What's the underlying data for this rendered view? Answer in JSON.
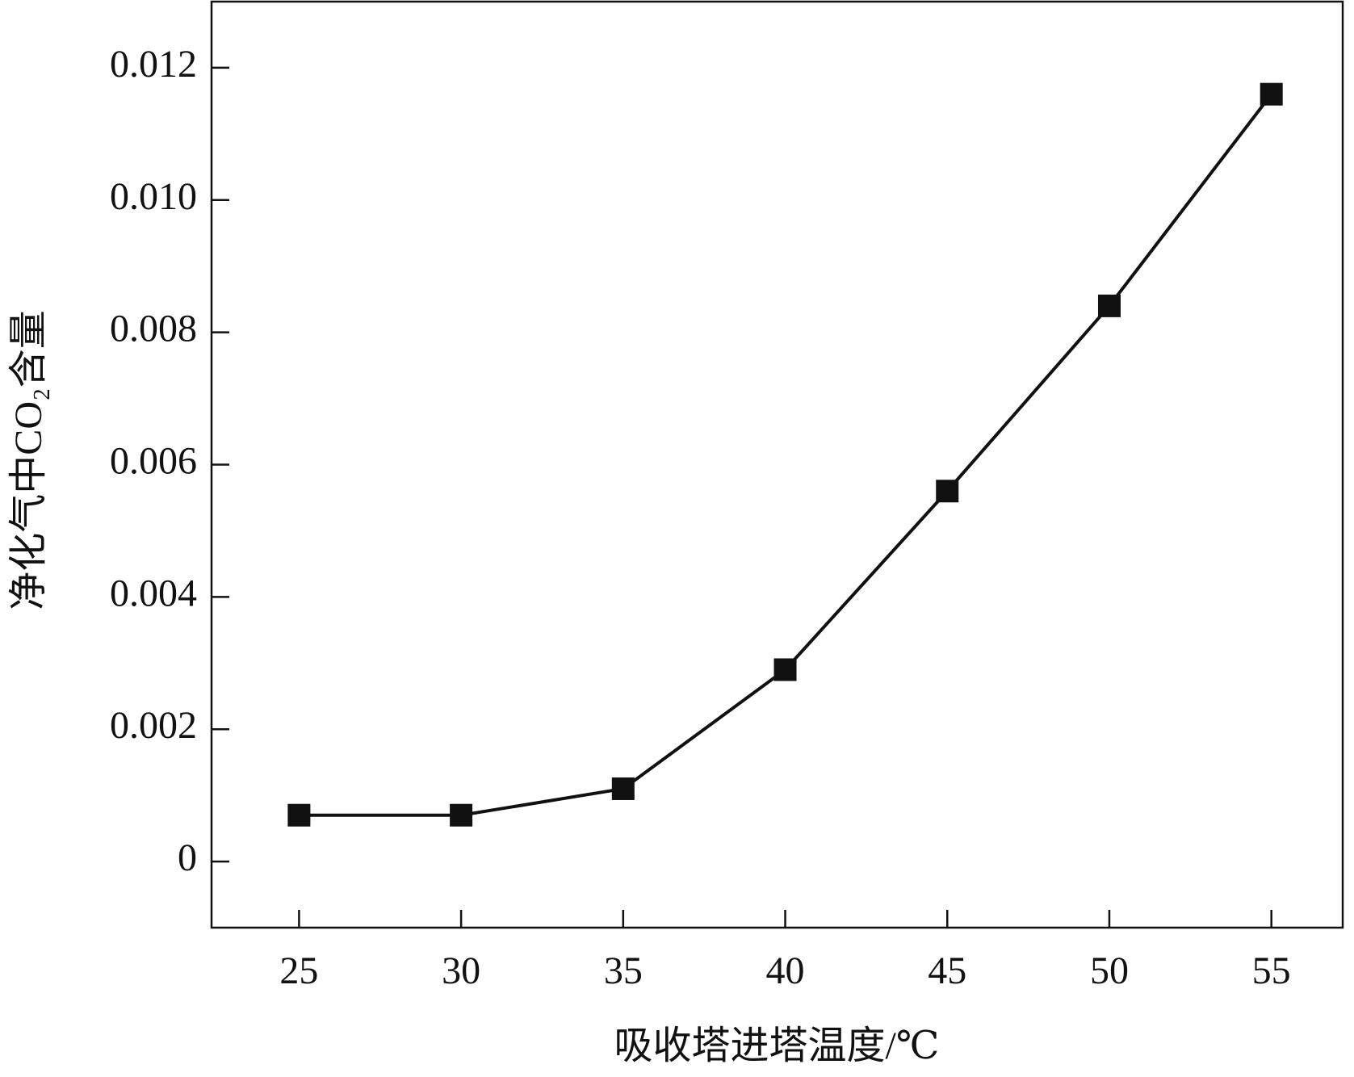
{
  "chart_data": {
    "type": "line",
    "x_label": "吸收塔进塔温度/℃",
    "y_label": "净化气中CO₂含量",
    "x": [
      25,
      30,
      35,
      40,
      45,
      50,
      55
    ],
    "series": [
      {
        "color": "#111111",
        "values": [
          0.0007,
          0.0007,
          0.0011,
          0.0029,
          0.0056,
          0.0084,
          0.0116
        ]
      }
    ],
    "xlim": [
      22.3,
      57.2
    ],
    "xticks": [
      25,
      30,
      35,
      40,
      45,
      50,
      55
    ],
    "ylim": [
      -0.001,
      0.013
    ],
    "yticks": [
      0,
      0.002,
      0.004,
      0.006,
      0.008,
      {
        "value": 0.01,
        "label": "0.010"
      },
      0.012
    ],
    "grid": false
  }
}
